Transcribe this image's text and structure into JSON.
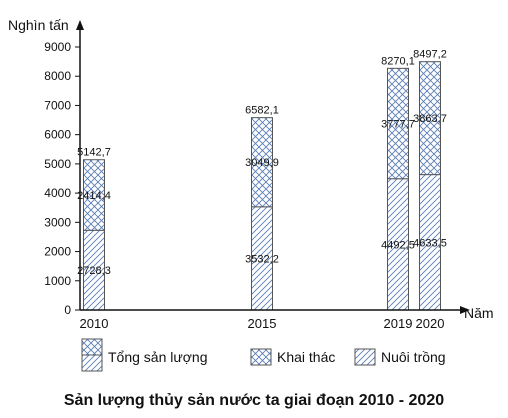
{
  "chart_data": {
    "type": "bar",
    "title": "Sản lượng thủy sản nước ta giai đoạn 2010 - 2020",
    "ylabel": "Nghìn tấn",
    "xlabel": "Năm",
    "ylim": [
      0,
      9000
    ],
    "yticks": [
      "0",
      "1000",
      "2000",
      "3000",
      "4000",
      "5000",
      "6000",
      "7000",
      "8000",
      "9000"
    ],
    "categories": [
      "2010",
      "2015",
      "2019",
      "2020"
    ],
    "series": [
      {
        "name": "Nuôi trồng",
        "values": [
          2728.3,
          3532.2,
          4492.5,
          4633.5
        ],
        "labels": [
          "2728,3",
          "3532,2",
          "4492,5",
          "4633,5"
        ]
      },
      {
        "name": "Khai thác",
        "values": [
          2414.4,
          3049.9,
          3777.7,
          3863.7
        ],
        "labels": [
          "2414,4",
          "3049,9",
          "3777,7",
          "3863,7"
        ]
      }
    ],
    "totals": {
      "name": "Tổng sản lượng",
      "values": [
        5142.7,
        6582.1,
        8270.1,
        8497.2
      ],
      "labels": [
        "5142,7",
        "6582,1",
        "8270,1",
        "8497,2"
      ]
    },
    "legend": [
      {
        "name": "Tổng sản lượng",
        "key": "total"
      },
      {
        "name": "Khai thác",
        "key": "khai"
      },
      {
        "name": "Nuôi trồng",
        "key": "nuoi"
      }
    ],
    "grid": false,
    "legend_position": "bottom"
  }
}
